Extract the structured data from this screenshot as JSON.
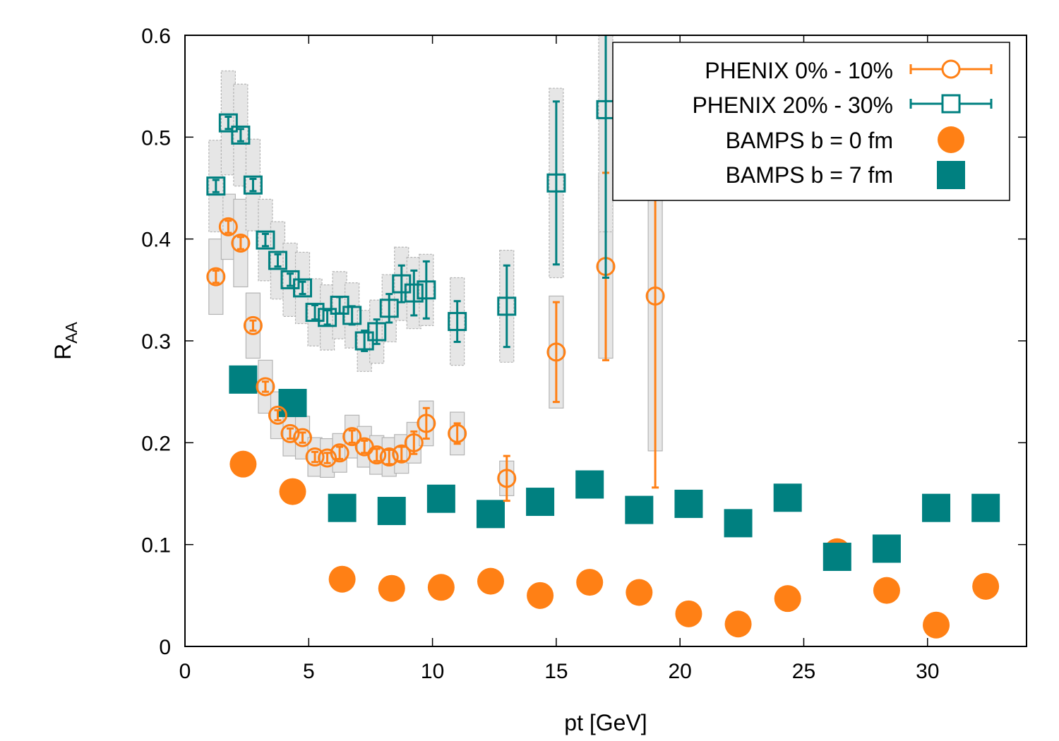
{
  "chart_data": {
    "type": "scatter",
    "xlabel": "pt [GeV]",
    "ylabel_main": "R",
    "ylabel_sub": "AA",
    "xlim": [
      0,
      34
    ],
    "ylim": [
      0,
      0.6
    ],
    "x_ticks": [
      0,
      5,
      10,
      15,
      20,
      25,
      30
    ],
    "x_tick_labels": [
      "0",
      "5",
      "10",
      "15",
      "20",
      "25",
      "30"
    ],
    "y_ticks": [
      0,
      0.1,
      0.2,
      0.3,
      0.4,
      0.5,
      0.6
    ],
    "y_tick_labels": [
      "0",
      "0.1",
      "0.2",
      "0.3",
      "0.4",
      "0.5",
      "0.6"
    ],
    "legend_position": "top-right",
    "colors": {
      "phenix_central": "#ff8015",
      "phenix_mid": "#008080",
      "bamps_b0": "#ff8015",
      "bamps_b7": "#008080",
      "sys_box_fill": "#e6e6e6",
      "sys_box_stroke": "#b4b4b4"
    },
    "series": [
      {
        "name": "PHENIX 0% - 10%",
        "marker": "open-circle",
        "color": "#ff8015",
        "x": [
          1.25,
          1.75,
          2.25,
          2.75,
          3.25,
          3.75,
          4.25,
          4.75,
          5.25,
          5.75,
          6.25,
          6.75,
          7.25,
          7.75,
          8.25,
          8.75,
          9.25,
          9.75,
          11.0,
          13.0,
          15.0,
          17.0,
          19.0
        ],
        "y": [
          0.363,
          0.412,
          0.396,
          0.315,
          0.255,
          0.227,
          0.209,
          0.205,
          0.186,
          0.185,
          0.19,
          0.206,
          0.196,
          0.188,
          0.186,
          0.189,
          0.2,
          0.219,
          0.209,
          0.165,
          0.289,
          0.373,
          0.344
        ],
        "yerr": [
          0.006,
          0.006,
          0.006,
          0.005,
          0.005,
          0.005,
          0.005,
          0.005,
          0.005,
          0.005,
          0.006,
          0.006,
          0.006,
          0.006,
          0.007,
          0.007,
          0.011,
          0.015,
          0.01,
          0.022,
          0.049,
          0.092,
          0.188
        ],
        "sys": [
          0.037,
          0.032,
          0.043,
          0.032,
          0.026,
          0.023,
          0.022,
          0.021,
          0.019,
          0.019,
          0.019,
          0.021,
          0.02,
          0.019,
          0.019,
          0.019,
          0.02,
          0.022,
          0.021,
          0.017,
          0.055,
          0.09,
          0.152
        ]
      },
      {
        "name": "PHENIX 20% - 30%",
        "marker": "open-square",
        "color": "#008080",
        "x": [
          1.25,
          1.75,
          2.25,
          2.75,
          3.25,
          3.75,
          4.25,
          4.75,
          5.25,
          5.75,
          6.25,
          6.75,
          7.25,
          7.75,
          8.25,
          8.75,
          9.25,
          9.75,
          11.0,
          13.0,
          15.0,
          17.0
        ],
        "y": [
          0.452,
          0.514,
          0.502,
          0.453,
          0.399,
          0.379,
          0.36,
          0.352,
          0.328,
          0.323,
          0.335,
          0.325,
          0.3,
          0.309,
          0.332,
          0.356,
          0.347,
          0.35,
          0.319,
          0.334,
          0.455,
          0.527
        ],
        "yerr": [
          0.006,
          0.006,
          0.006,
          0.006,
          0.006,
          0.006,
          0.006,
          0.006,
          0.007,
          0.007,
          0.008,
          0.009,
          0.01,
          0.012,
          0.014,
          0.018,
          0.022,
          0.028,
          0.02,
          0.04,
          0.08,
          0.165
        ],
        "sys": [
          0.045,
          0.051,
          0.05,
          0.045,
          0.04,
          0.038,
          0.036,
          0.035,
          0.033,
          0.032,
          0.033,
          0.032,
          0.03,
          0.031,
          0.033,
          0.036,
          0.035,
          0.035,
          0.043,
          0.055,
          0.093,
          0.12
        ]
      },
      {
        "name": "BAMPS b = 0 fm",
        "marker": "filled-circle",
        "color": "#ff8015",
        "x": [
          2.35,
          4.35,
          6.35,
          8.35,
          10.35,
          12.35,
          14.35,
          16.35,
          18.35,
          20.35,
          22.35,
          24.35,
          26.35,
          28.35,
          30.35,
          32.35
        ],
        "y": [
          0.179,
          0.152,
          0.066,
          0.057,
          0.058,
          0.064,
          0.05,
          0.063,
          0.053,
          0.032,
          0.022,
          0.047,
          0.093,
          0.055,
          0.021,
          0.059
        ]
      },
      {
        "name": "BAMPS b = 7 fm",
        "marker": "filled-square",
        "color": "#008080",
        "x": [
          2.35,
          4.35,
          6.35,
          8.35,
          10.35,
          12.35,
          14.35,
          16.35,
          18.35,
          20.35,
          22.35,
          24.35,
          26.35,
          28.35,
          30.35,
          32.35
        ],
        "y": [
          0.262,
          0.239,
          0.136,
          0.133,
          0.145,
          0.13,
          0.142,
          0.159,
          0.134,
          0.14,
          0.121,
          0.146,
          0.088,
          0.096,
          0.136,
          0.136
        ]
      }
    ]
  }
}
